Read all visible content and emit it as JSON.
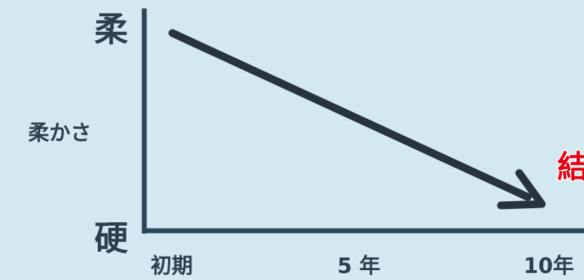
{
  "chart_data": {
    "type": "line",
    "ylabel": "柔かさ",
    "y_top_label": "柔",
    "y_bottom_label": "硬",
    "categories": [
      "初期",
      "5 年",
      "10年"
    ],
    "trend": {
      "start": "柔",
      "end": "硬",
      "direction": "decreasing"
    },
    "annotation": "結",
    "colors": {
      "axis": "#2b4656",
      "arrow": "#27343d",
      "label": "#2b3f4c",
      "annotation": "#e60012",
      "background": "#d4e8f1"
    }
  }
}
